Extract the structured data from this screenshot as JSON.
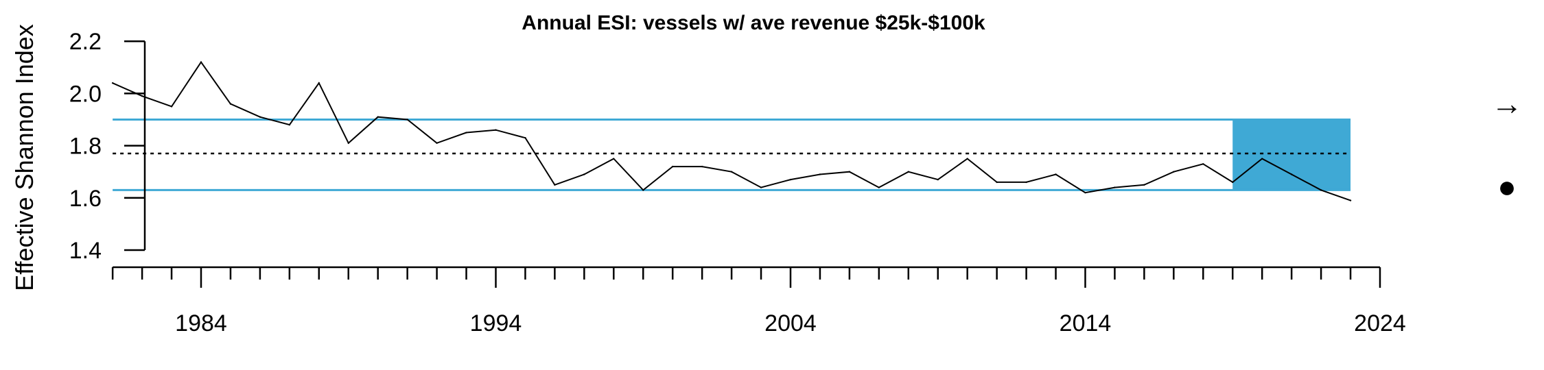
{
  "chart_data": {
    "type": "line",
    "title": "Annual ESI: vessels w/ ave revenue $25k-$100k",
    "xlabel": "",
    "ylabel": "Effective Shannon Index",
    "xlim": [
      1981,
      2024
    ],
    "ylim": [
      1.4,
      2.2
    ],
    "x_ticks": [
      1984,
      1994,
      2004,
      2014,
      2024
    ],
    "y_ticks": [
      1.4,
      1.6,
      1.8,
      2.0,
      2.2
    ],
    "y_tick_labels": [
      "1.4",
      "1.6",
      "1.8",
      "2.0",
      "2.2"
    ],
    "x_minor_ticks_every": 1,
    "series": [
      {
        "x": [
          1981,
          1982,
          1983,
          1984,
          1985,
          1986,
          1987,
          1988,
          1989,
          1990,
          1991,
          1992,
          1993,
          1994,
          1995,
          1996,
          1997,
          1998,
          1999,
          2000,
          2001,
          2002,
          2003,
          2004,
          2005,
          2006,
          2007,
          2008,
          2009,
          2010,
          2011,
          2012,
          2013,
          2014,
          2015,
          2016,
          2017,
          2018,
          2019,
          2020,
          2021,
          2022,
          2023
        ],
        "values": [
          2.04,
          1.99,
          1.95,
          2.12,
          1.96,
          1.91,
          1.88,
          2.04,
          1.81,
          1.91,
          1.9,
          1.81,
          1.85,
          1.86,
          1.83,
          1.65,
          1.69,
          1.75,
          1.63,
          1.72,
          1.72,
          1.7,
          1.64,
          1.67,
          1.69,
          1.7,
          1.64,
          1.7,
          1.67,
          1.75,
          1.66,
          1.66,
          1.69,
          1.62,
          1.64,
          1.65,
          1.7,
          1.73,
          1.66,
          1.75,
          1.69,
          1.63,
          1.59
        ],
        "color": "#000000"
      }
    ],
    "reference_lines": {
      "mean": 1.77,
      "upper": 1.9,
      "lower": 1.63,
      "mean_style": "dotted",
      "bound_color": "#3fa9d5"
    },
    "highlight_range": {
      "x": [
        2019,
        2023
      ],
      "color": "#3fa9d5"
    },
    "trend_indicators": {
      "arrow": "→",
      "marker": "●"
    }
  }
}
